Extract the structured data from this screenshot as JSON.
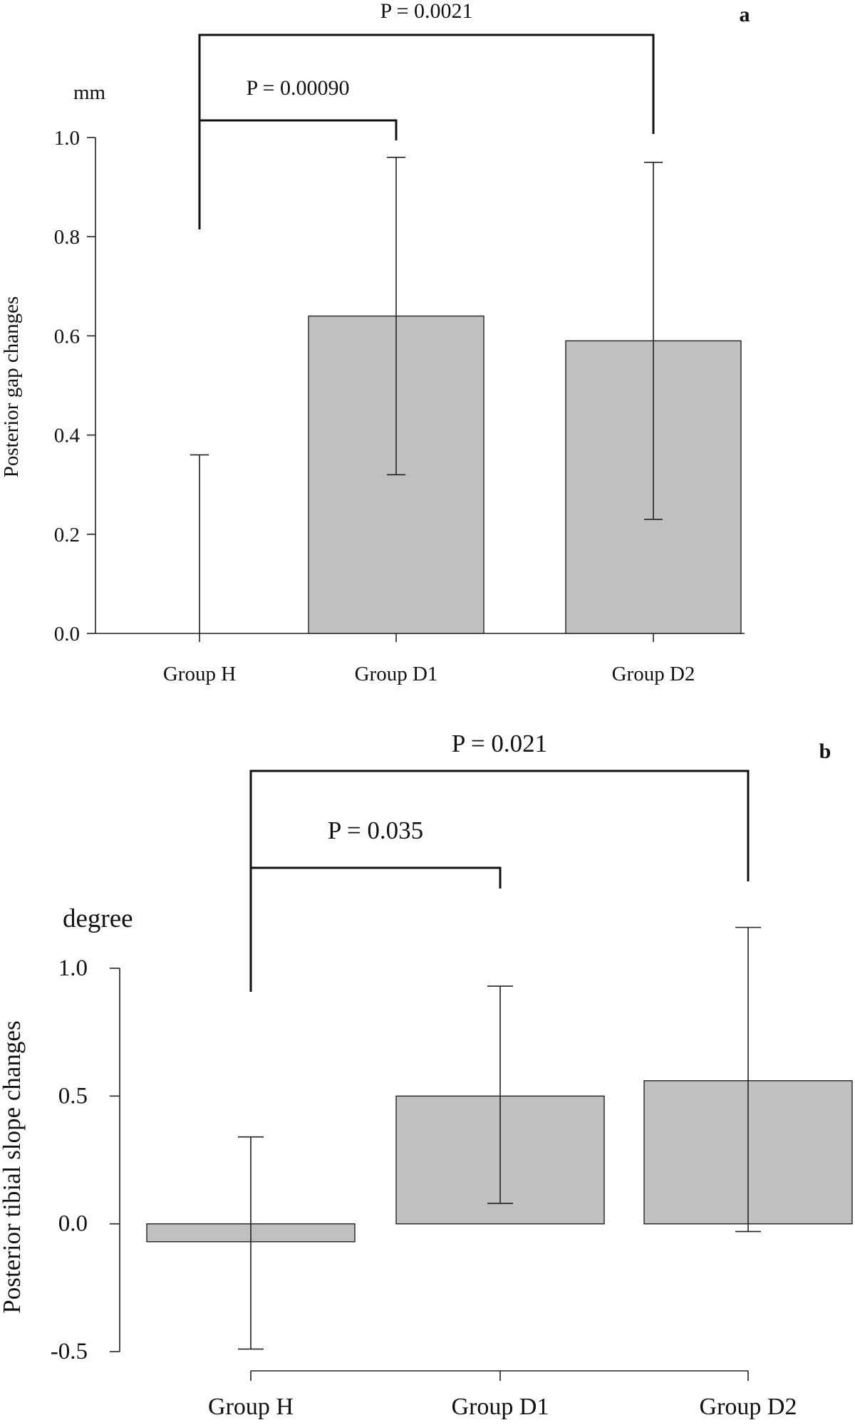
{
  "chart_data": [
    {
      "type": "bar",
      "panel_label": "a",
      "ylabel": "Posterior gap changes",
      "unit_label": "mm",
      "categories": [
        "Group H",
        "Group D1",
        "Group D2"
      ],
      "values": [
        0.0,
        0.64,
        0.59
      ],
      "error_upper": [
        0.36,
        0.96,
        0.95
      ],
      "error_lower": [
        0.0,
        0.32,
        0.23
      ],
      "ylim": [
        0.0,
        1.0
      ],
      "yticks": [
        0.0,
        0.2,
        0.4,
        0.6,
        0.8,
        1.0
      ],
      "ytick_labels": [
        "0.0",
        "0.2",
        "0.4",
        "0.6",
        "0.8",
        "1.0"
      ],
      "comparisons": [
        {
          "from": "Group H",
          "to": "Group D1",
          "label": "P = 0.00090"
        },
        {
          "from": "Group H",
          "to": "Group D2",
          "label": "P = 0.0021"
        }
      ]
    },
    {
      "type": "bar",
      "panel_label": "b",
      "ylabel": "Posterior tibial slope changes",
      "unit_label": "degree",
      "categories": [
        "Group H",
        "Group D1",
        "Group D2"
      ],
      "values": [
        -0.07,
        0.5,
        0.56
      ],
      "error_upper": [
        0.34,
        0.93,
        1.16
      ],
      "error_lower": [
        -0.49,
        0.08,
        -0.03
      ],
      "ylim": [
        -0.5,
        1.0
      ],
      "yticks": [
        -0.5,
        0.0,
        0.5,
        1.0
      ],
      "ytick_labels": [
        "-0.5",
        "0.0",
        "0.5",
        "1.0"
      ],
      "comparisons": [
        {
          "from": "Group H",
          "to": "Group D1",
          "label": "P = 0.035"
        },
        {
          "from": "Group H",
          "to": "Group D2",
          "label": "P = 0.021"
        }
      ]
    }
  ]
}
